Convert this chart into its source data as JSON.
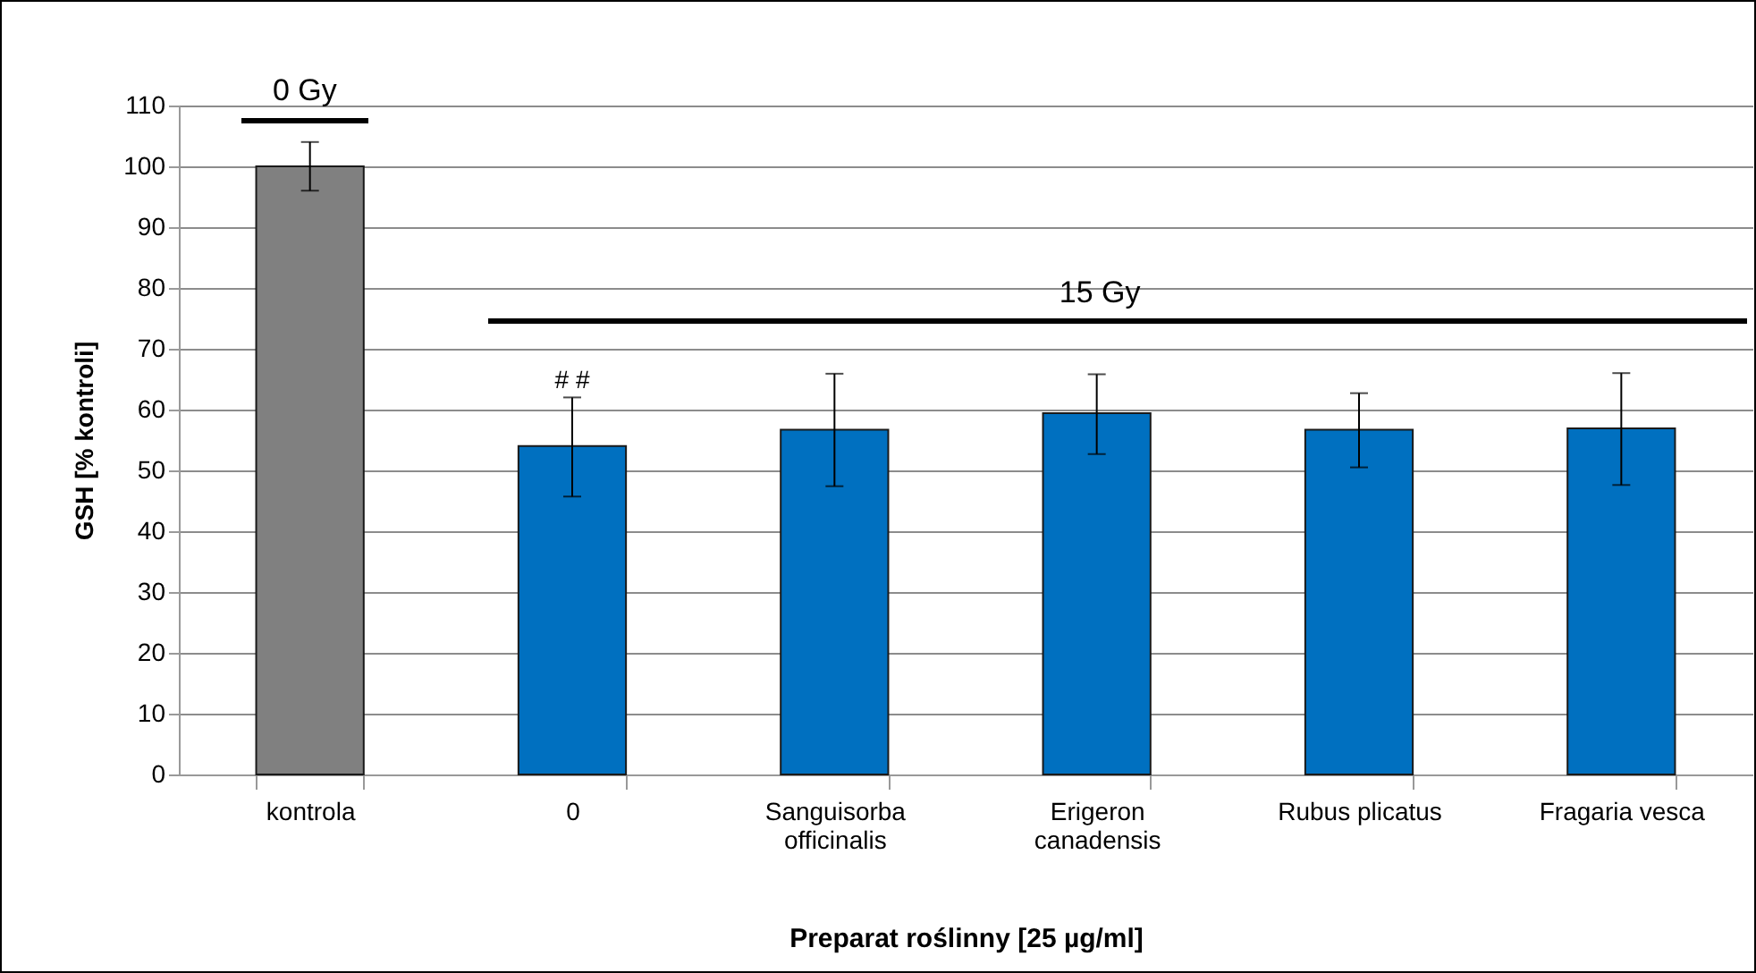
{
  "chart_data": {
    "type": "bar",
    "xlabel": "Preparat roślinny [25 µg/ml]",
    "ylabel": "GSH  [% kontroli]",
    "categories": [
      "kontrola",
      "0",
      "Sanguisorba officinalis",
      "Erigeron canadensis",
      "Rubus plicatus",
      "Fragaria vesca"
    ],
    "values": [
      100,
      54,
      56.7,
      59.4,
      56.7,
      56.9
    ],
    "colors": [
      "#808080",
      "#0070c0",
      "#0070c0",
      "#0070c0",
      "#0070c0",
      "#0070c0"
    ],
    "errors": [
      [
        96,
        104
      ],
      [
        45.7,
        62
      ],
      [
        47.4,
        65.9
      ],
      [
        52.7,
        65.8
      ],
      [
        50.5,
        62.7
      ],
      [
        47.6,
        66
      ]
    ],
    "ylim": [
      0,
      110
    ],
    "yticks": [
      0,
      10,
      20,
      30,
      40,
      50,
      60,
      70,
      80,
      90,
      100,
      110
    ],
    "grid": "y",
    "annotations": [
      "0 Gy",
      "15 Gy",
      {
        "text": "# #",
        "x": "0",
        "y": 62
      }
    ]
  }
}
